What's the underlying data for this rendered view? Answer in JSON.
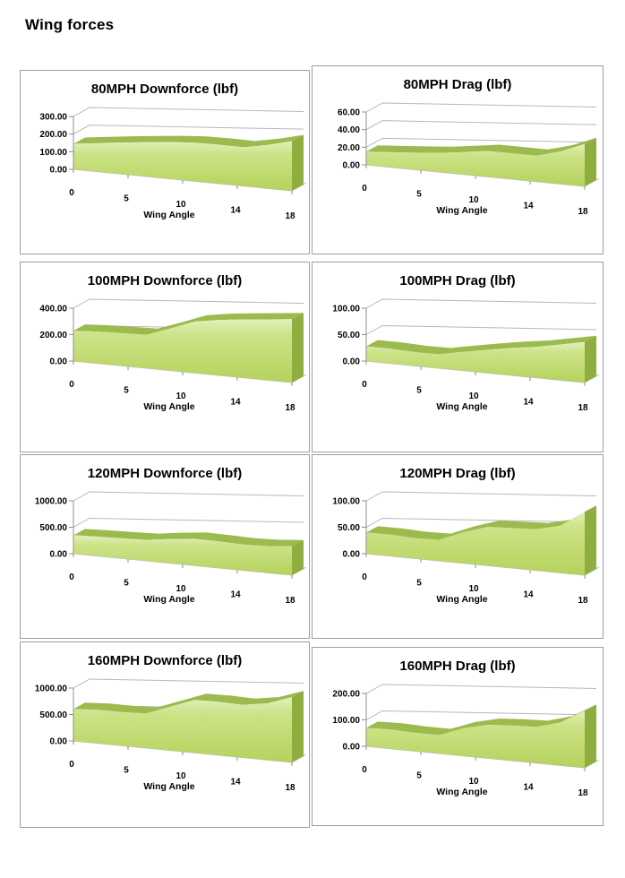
{
  "page": {
    "title": "Wing forces"
  },
  "style": {
    "grid_color": "#b8b8b8",
    "axis_color": "#8f8f8f",
    "area_top_band": "#9cba4e",
    "area_side": "#8fae40",
    "area_front_top": "#e2f0bc",
    "area_front_mid": "#cde388",
    "area_front_bottom": "#b5d25c",
    "box_border": "#9d9d9d"
  },
  "chart_data": [
    {
      "type": "area",
      "title": "80MPH Downforce (lbf)",
      "xlabel": "Wing Angle",
      "x": [
        0,
        2,
        4,
        6,
        8,
        10,
        12,
        14,
        16,
        18
      ],
      "values": [
        145,
        152,
        158,
        162,
        165,
        164,
        158,
        150,
        161,
        176
      ],
      "y_ticks": [
        300,
        200,
        100,
        0
      ],
      "ylim": [
        0,
        300
      ],
      "x_tick_labels": [
        0,
        5,
        10,
        14,
        18
      ],
      "grid": true,
      "legend": "none"
    },
    {
      "type": "area",
      "title": "80MPH Drag (lbf)",
      "xlabel": "Wing Angle",
      "x": [
        0,
        2,
        4,
        6,
        8,
        10,
        12,
        14,
        16,
        18
      ],
      "values": [
        15,
        16,
        17,
        18,
        20,
        22,
        21,
        20,
        24,
        30
      ],
      "y_ticks": [
        60,
        40,
        20,
        0
      ],
      "ylim": [
        0,
        60
      ],
      "x_tick_labels": [
        0,
        5,
        10,
        14,
        18
      ],
      "grid": true,
      "legend": "none"
    },
    {
      "type": "area",
      "title": "100MPH Downforce (lbf)",
      "xlabel": "Wing Angle",
      "x": [
        0,
        2,
        4,
        6,
        8,
        10,
        12,
        14,
        16,
        18
      ],
      "values": [
        230,
        226,
        218,
        210,
        252,
        292,
        300,
        301,
        300,
        300
      ],
      "y_ticks": [
        400,
        200,
        0
      ],
      "ylim": [
        0,
        400
      ],
      "x_tick_labels": [
        0,
        5,
        10,
        14,
        18
      ],
      "grid": true,
      "legend": "none"
    },
    {
      "type": "area",
      "title": "100MPH Drag (lbf)",
      "xlabel": "Wing Angle",
      "x": [
        0,
        2,
        4,
        6,
        8,
        10,
        12,
        14,
        16,
        18
      ],
      "values": [
        28,
        26,
        23,
        22,
        28,
        33,
        37,
        40,
        44,
        48
      ],
      "y_ticks": [
        100,
        50,
        0
      ],
      "ylim": [
        0,
        100
      ],
      "x_tick_labels": [
        0,
        5,
        10,
        14,
        18
      ],
      "grid": true,
      "legend": "none"
    },
    {
      "type": "area",
      "title": "120MPH Downforce (lbf)",
      "xlabel": "Wing Angle",
      "x": [
        0,
        2,
        4,
        6,
        8,
        10,
        12,
        14,
        16,
        18
      ],
      "values": [
        350,
        345,
        335,
        330,
        362,
        380,
        358,
        335,
        330,
        342
      ],
      "y_ticks": [
        1000,
        500,
        0
      ],
      "ylim": [
        0,
        1000
      ],
      "x_tick_labels": [
        0,
        5,
        10,
        14,
        18
      ],
      "grid": true,
      "legend": "none"
    },
    {
      "type": "area",
      "title": "120MPH Drag (lbf)",
      "xlabel": "Wing Angle",
      "x": [
        0,
        2,
        4,
        6,
        8,
        10,
        12,
        14,
        16,
        18
      ],
      "values": [
        40,
        38,
        34,
        33,
        46,
        55,
        54,
        53,
        58,
        75
      ],
      "y_ticks": [
        100,
        50,
        0
      ],
      "ylim": [
        0,
        100
      ],
      "x_tick_labels": [
        0,
        5,
        10,
        14,
        18
      ],
      "grid": true,
      "legend": "none"
    },
    {
      "type": "area",
      "title": "160MPH Downforce (lbf)",
      "xlabel": "Wing Angle",
      "x": [
        0,
        2,
        4,
        6,
        8,
        10,
        12,
        14,
        16,
        18
      ],
      "values": [
        605,
        595,
        560,
        545,
        655,
        750,
        722,
        680,
        700,
        772
      ],
      "y_ticks": [
        1000,
        500,
        0
      ],
      "ylim": [
        0,
        1000
      ],
      "x_tick_labels": [
        0,
        5,
        10,
        14,
        18
      ],
      "grid": true,
      "legend": "none"
    },
    {
      "type": "area",
      "title": "160MPH Drag (lbf)",
      "xlabel": "Wing Angle",
      "x": [
        0,
        2,
        4,
        6,
        8,
        10,
        12,
        14,
        16,
        18
      ],
      "values": [
        70,
        68,
        61,
        58,
        82,
        95,
        95,
        93,
        106,
        135
      ],
      "y_ticks": [
        200,
        100,
        0
      ],
      "ylim": [
        0,
        200
      ],
      "x_tick_labels": [
        0,
        5,
        10,
        14,
        18
      ],
      "grid": true,
      "legend": "none"
    }
  ]
}
